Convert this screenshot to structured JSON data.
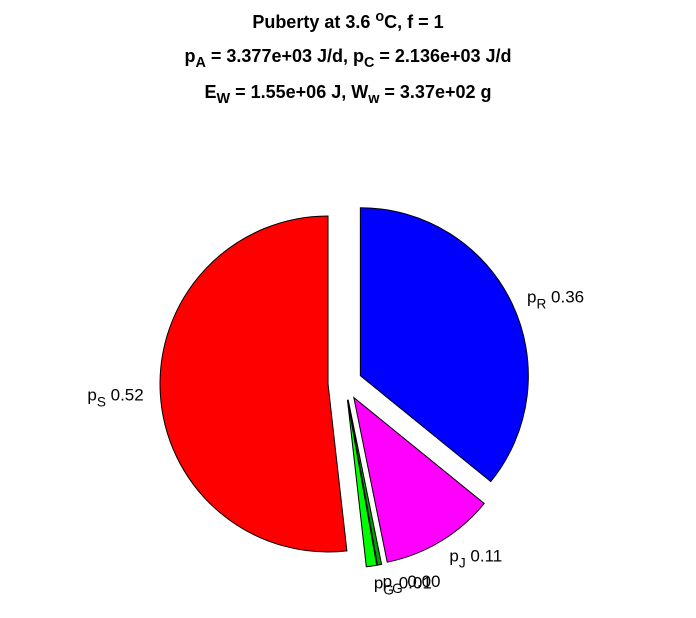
{
  "chart_data": {
    "type": "pie",
    "title": [
      [
        {
          "t": "Puberty at 3.6 "
        },
        {
          "t": "o",
          "s": "sup"
        },
        {
          "t": "C, f = 1"
        }
      ],
      [
        {
          "t": "p"
        },
        {
          "t": "A",
          "s": "sub"
        },
        {
          "t": " = 3.377e+03 J/d,  p"
        },
        {
          "t": "C",
          "s": "sub"
        },
        {
          "t": " = 2.136e+03 J/d"
        }
      ],
      [
        {
          "t": "E"
        },
        {
          "t": "W",
          "s": "sub"
        },
        {
          "t": " = 1.55e+06 J, W"
        },
        {
          "t": "w",
          "s": "sub"
        },
        {
          "t": " = 3.37e+02 g"
        }
      ]
    ],
    "series": [
      {
        "name": "p",
        "sub": "R",
        "color": "#0000ff",
        "values": [
          0.36
        ],
        "value_labels": [
          "0.36"
        ]
      },
      {
        "name": "p",
        "sub": "J",
        "color": "#ff00ff",
        "values": [
          0.11
        ],
        "value_labels": [
          "0.11"
        ]
      },
      {
        "name": "p",
        "sub": "G",
        "color": "#00a000",
        "values": [
          0.004
        ],
        "value_labels": [
          "0.00"
        ]
      },
      {
        "name": "p",
        "sub": "G",
        "color": "#00ff00",
        "values": [
          0.01
        ],
        "value_labels": [
          "0.01"
        ]
      },
      {
        "name": "p",
        "sub": "S",
        "color": "#ff0000",
        "values": [
          0.52
        ],
        "value_labels": [
          "0.52"
        ]
      }
    ]
  }
}
